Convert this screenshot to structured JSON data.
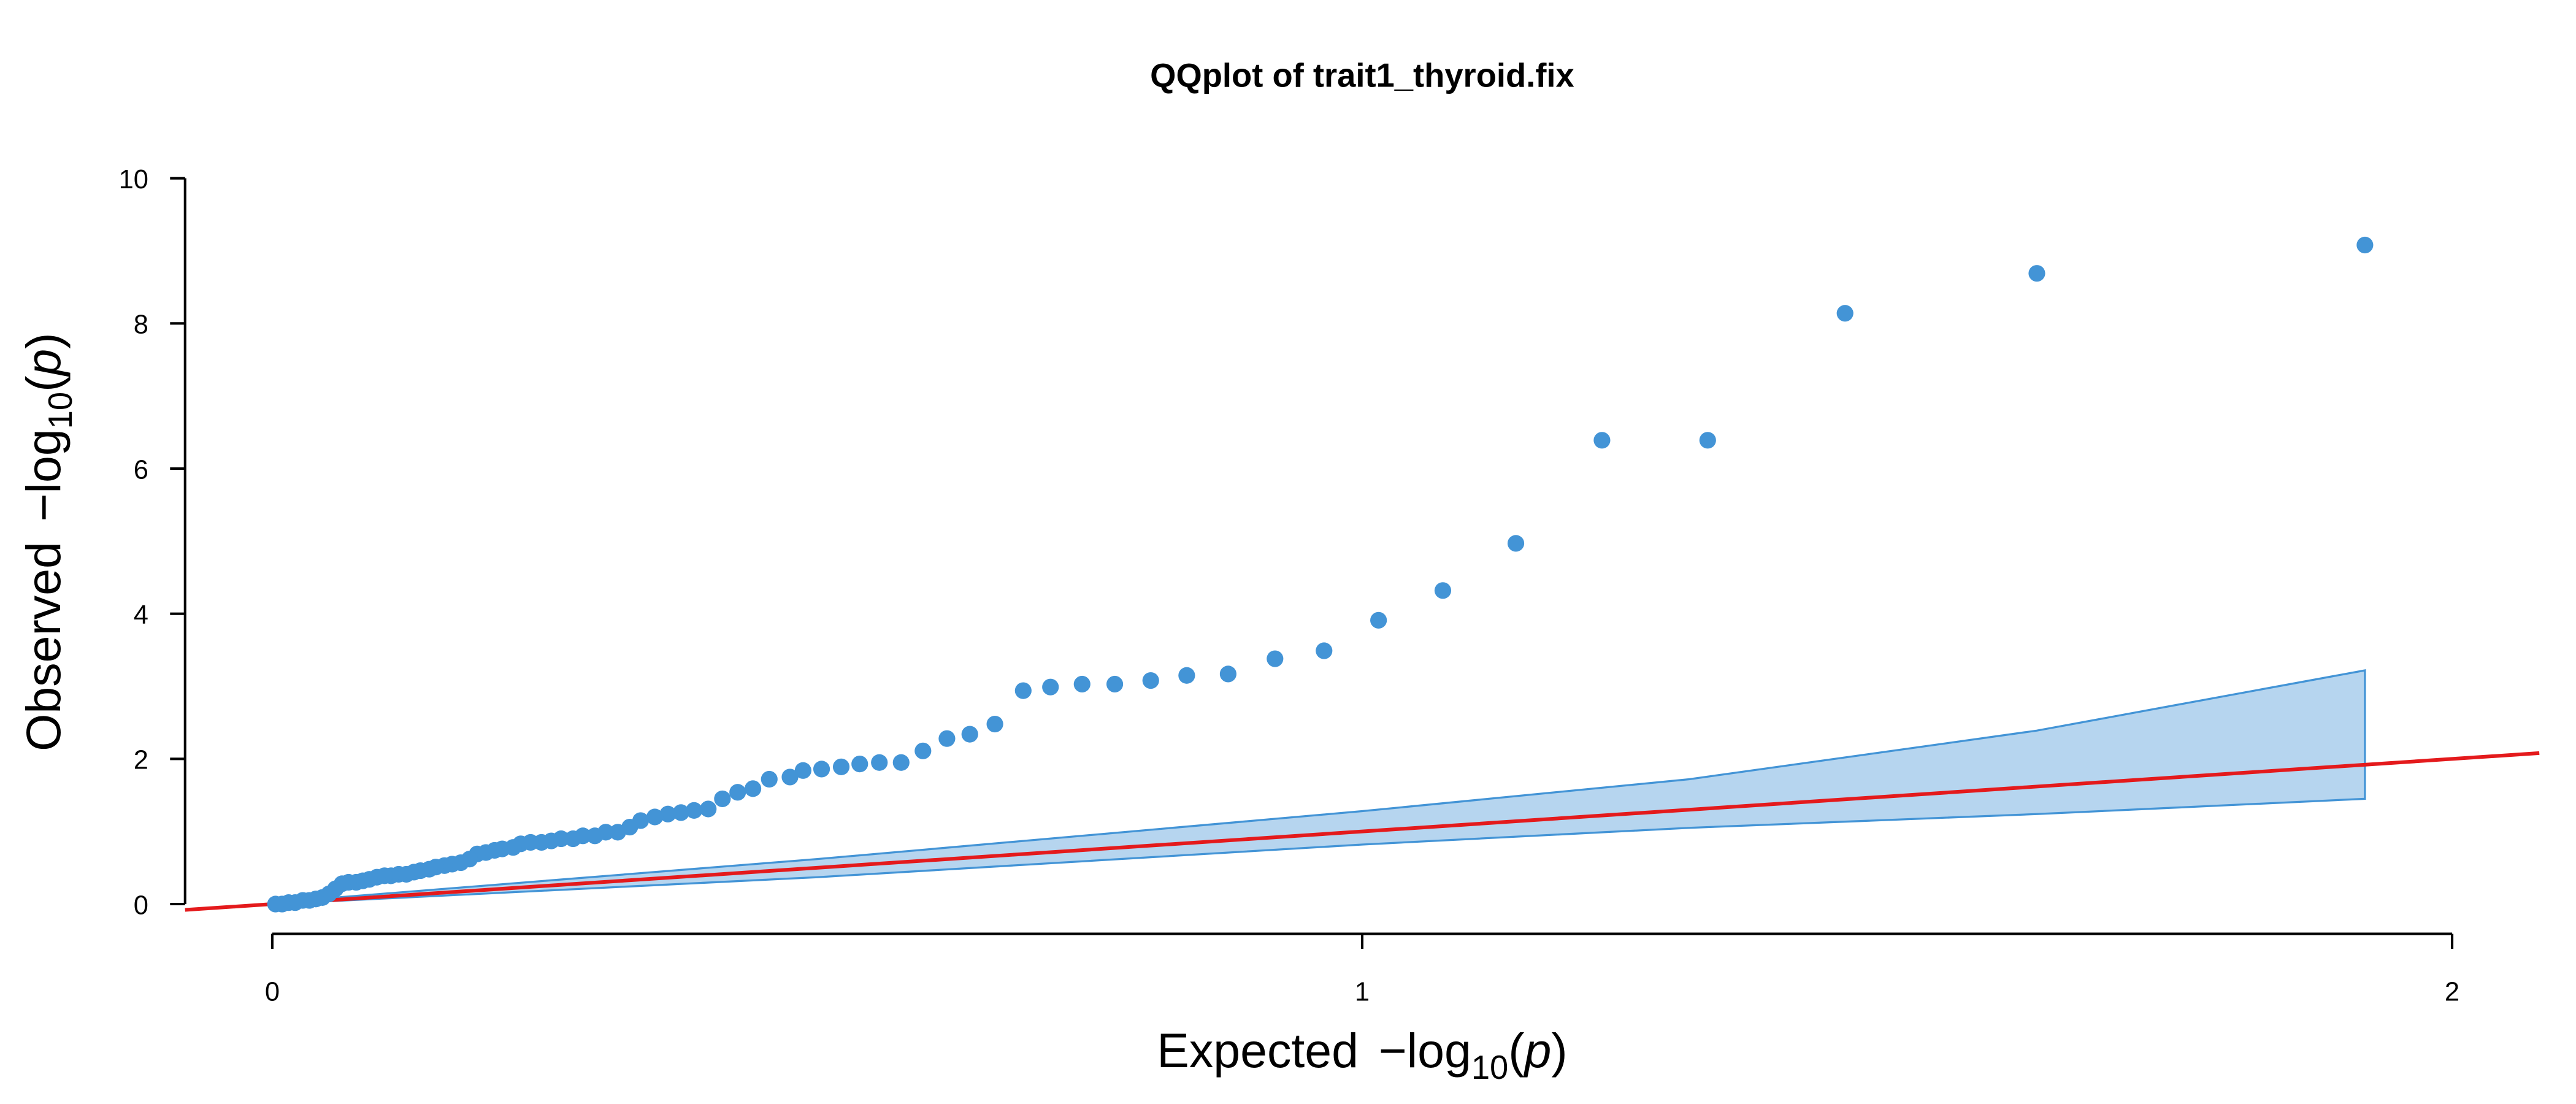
{
  "chart_data": {
    "type": "scatter",
    "title": "QQplot of trait1_thyroid.fix",
    "xlabel": [
      "Expected",
      "−log",
      "10",
      "(",
      "p",
      ")"
    ],
    "ylabel": [
      "Observed",
      "−log",
      "10",
      "(",
      "p",
      ")"
    ],
    "xlim": [
      -0.08,
      2.08
    ],
    "ylim": [
      -0.41,
      10.41
    ],
    "xticks": [
      0,
      1,
      2
    ],
    "yticks": [
      0,
      2,
      4,
      6,
      8,
      10
    ],
    "color": "#4394d6",
    "reference_line_color": "#e41a1c",
    "band": {
      "color": "#b6d5ef",
      "x": [
        0,
        0.5,
        1.0,
        1.3,
        1.619,
        1.92
      ],
      "upper": [
        0.02,
        0.62,
        1.28,
        1.72,
        2.39,
        3.22
      ],
      "lower": [
        0,
        0.37,
        0.82,
        1.05,
        1.24,
        1.45
      ]
    },
    "x": [
      1.92,
      1.619,
      1.443,
      1.317,
      1.22,
      1.141,
      1.074,
      1.015,
      0.965,
      0.92,
      0.877,
      0.839,
      0.806,
      0.773,
      0.743,
      0.714,
      0.689,
      0.663,
      0.64,
      0.619,
      0.597,
      0.577,
      0.557,
      0.539,
      0.522,
      0.504,
      0.487,
      0.475,
      0.456,
      0.441,
      0.427,
      0.413,
      0.4,
      0.387,
      0.375,
      0.363,
      0.351,
      0.338,
      0.328,
      0.317,
      0.306,
      0.296,
      0.285,
      0.276,
      0.265,
      0.256,
      0.247,
      0.237,
      0.228,
      0.221,
      0.211,
      0.204,
      0.196,
      0.188,
      0.181,
      0.173,
      0.165,
      0.158,
      0.15,
      0.144,
      0.136,
      0.13,
      0.123,
      0.116,
      0.109,
      0.103,
      0.096,
      0.089,
      0.083,
      0.077,
      0.07,
      0.064,
      0.058,
      0.052,
      0.046,
      0.04,
      0.034,
      0.028,
      0.021,
      0.015,
      0.009,
      0.003
    ],
    "values": [
      9.08,
      8.69,
      8.14,
      6.39,
      6.39,
      4.97,
      4.32,
      3.91,
      3.49,
      3.38,
      3.17,
      3.15,
      3.08,
      3.03,
      3.03,
      2.99,
      2.94,
      2.48,
      2.34,
      2.28,
      2.11,
      1.95,
      1.95,
      1.93,
      1.89,
      1.86,
      1.84,
      1.75,
      1.72,
      1.59,
      1.54,
      1.45,
      1.31,
      1.29,
      1.26,
      1.24,
      1.2,
      1.15,
      1.06,
      0.99,
      0.99,
      0.94,
      0.94,
      0.9,
      0.9,
      0.87,
      0.85,
      0.85,
      0.83,
      0.78,
      0.76,
      0.74,
      0.71,
      0.69,
      0.62,
      0.57,
      0.55,
      0.53,
      0.51,
      0.48,
      0.46,
      0.44,
      0.41,
      0.41,
      0.39,
      0.39,
      0.37,
      0.34,
      0.32,
      0.3,
      0.3,
      0.28,
      0.21,
      0.14,
      0.09,
      0.07,
      0.05,
      0.05,
      0.02,
      0.02,
      0.0,
      0.0
    ]
  }
}
